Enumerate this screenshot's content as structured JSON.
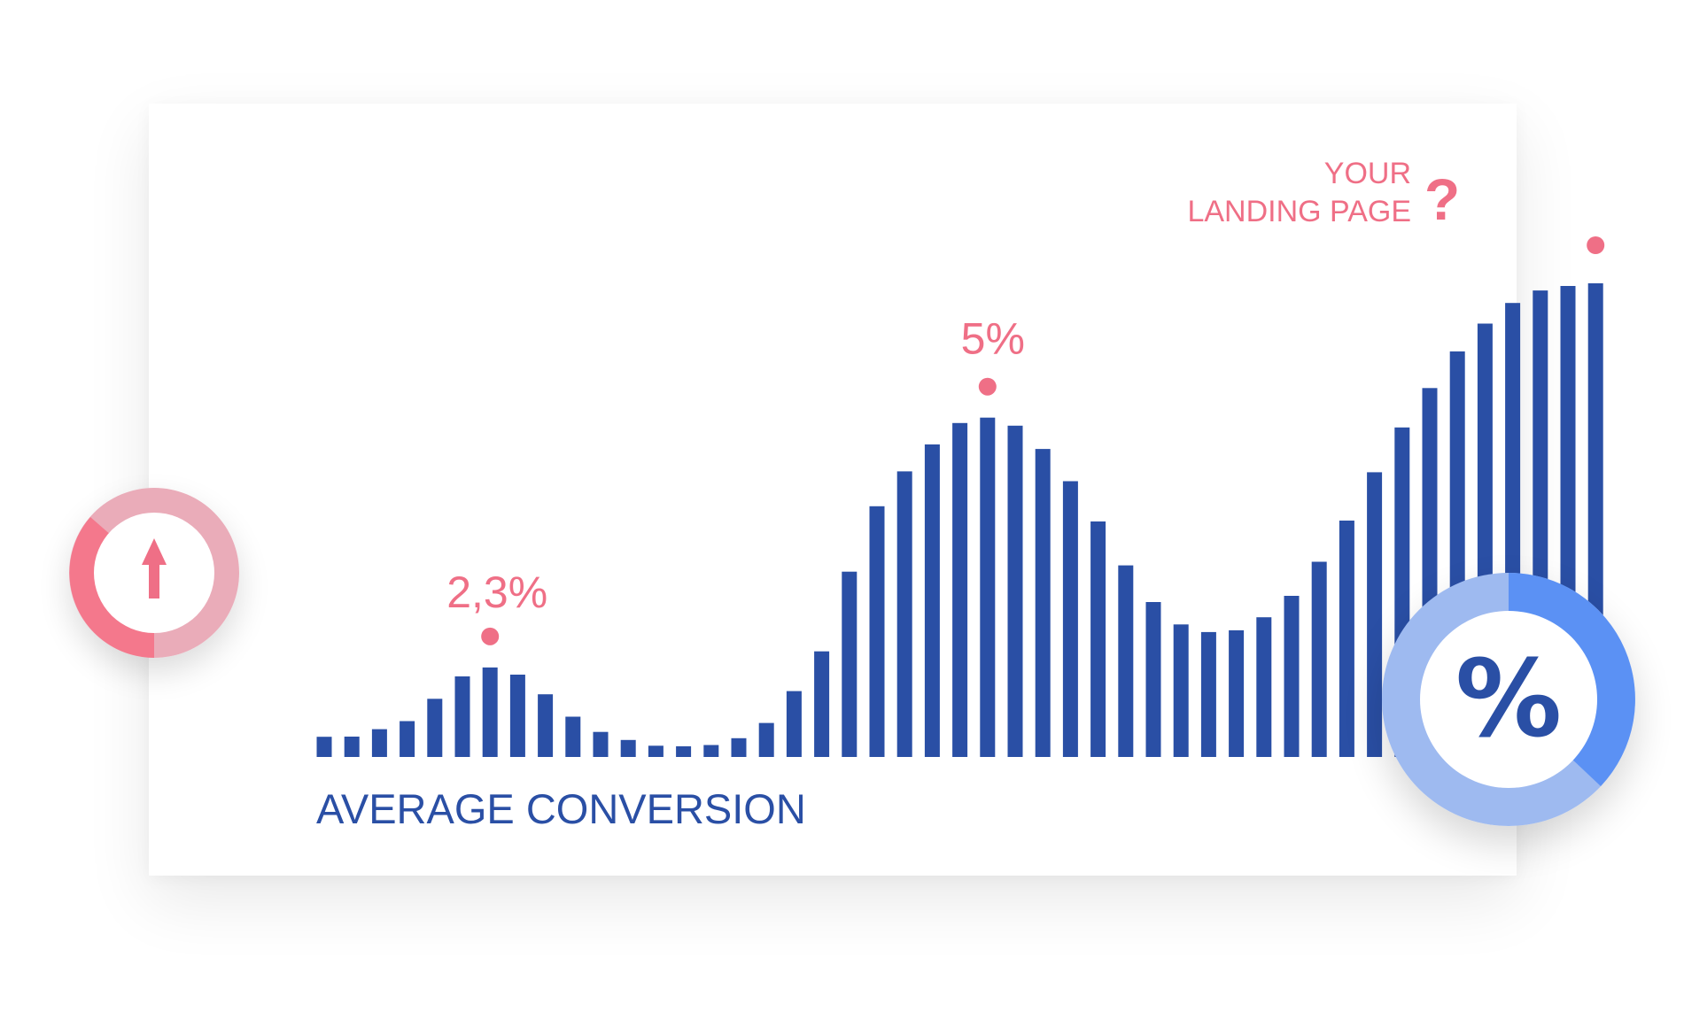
{
  "chart_data": {
    "type": "bar",
    "xlabel": "AVERAGE CONVERSION",
    "values": [
      0.225,
      0.227,
      0.31,
      0.4,
      0.65,
      0.9,
      1.0,
      0.92,
      0.7,
      0.45,
      0.28,
      0.19,
      0.126,
      0.12,
      0.133,
      0.21,
      0.38,
      0.736,
      1.18,
      2.07,
      2.8,
      3.19,
      3.49,
      3.73,
      3.79,
      3.7,
      3.44,
      3.08,
      2.63,
      2.14,
      1.73,
      1.48,
      1.395,
      1.415,
      1.56,
      1.8,
      2.18,
      2.64,
      3.18,
      3.68,
      4.12,
      4.53,
      4.84,
      5.07,
      5.21,
      5.26,
      5.29
    ],
    "annotations": [
      {
        "text": "2,3%",
        "bar_index": 6
      },
      {
        "text": "5%",
        "bar_index": 24
      },
      {
        "text": "YOUR LANDING PAGE",
        "bar_index": 46
      }
    ],
    "colors": {
      "bars": "#2a4fa5",
      "accent": "#ef6f86"
    }
  },
  "labels": {
    "peak1": "2,3%",
    "peak2": "5%",
    "landing_line1": "YOUR",
    "landing_line2": "LANDING PAGE",
    "question": "?",
    "axis_title": "AVERAGE CONVERSION"
  },
  "badges": {
    "left": {
      "icon": "up-arrow-icon",
      "ring_colors": [
        "#f4788c",
        "#eaacb9"
      ]
    },
    "right": {
      "icon": "percent-icon",
      "glyph": "%",
      "ring_colors": [
        "#5b91f4",
        "#9ebaf0"
      ]
    }
  }
}
